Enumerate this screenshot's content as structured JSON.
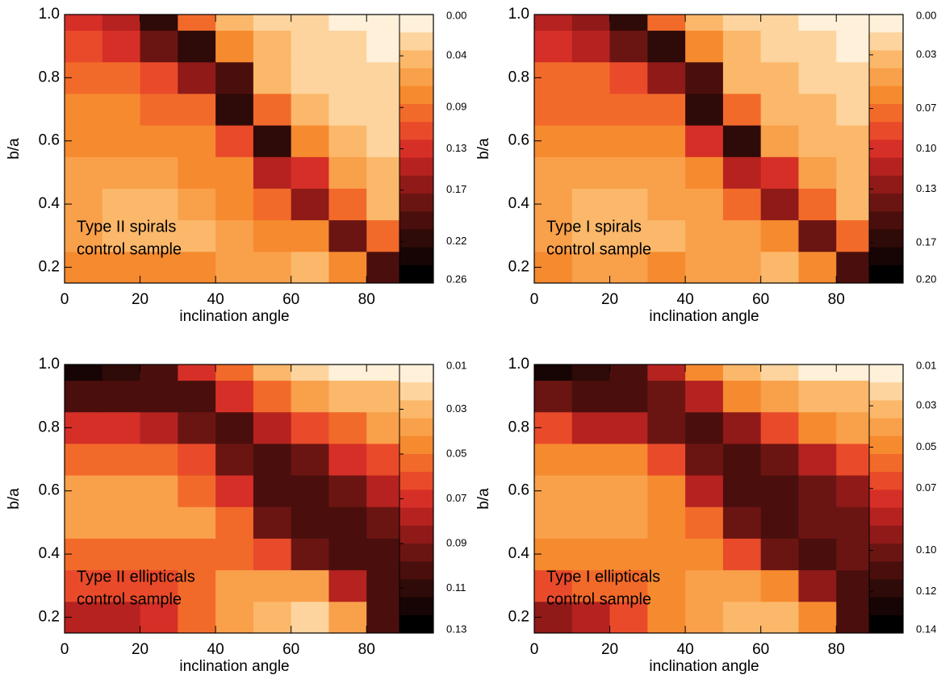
{
  "chart_data": [
    {
      "type": "contour",
      "x": [
        5,
        15,
        25,
        35,
        45,
        55,
        65,
        75,
        85
      ],
      "y": [
        0.2,
        0.3,
        0.4,
        0.5,
        0.6,
        0.7,
        0.8,
        0.9,
        1.0
      ],
      "z": [
        [
          0.08,
          0.07,
          0.07,
          0.08,
          0.06,
          0.06,
          0.05,
          0.08,
          0.2
        ],
        [
          0.06,
          0.05,
          0.05,
          0.05,
          0.06,
          0.07,
          0.08,
          0.18,
          0.1
        ],
        [
          0.06,
          0.05,
          0.05,
          0.06,
          0.07,
          0.09,
          0.16,
          0.1,
          0.05
        ],
        [
          0.06,
          0.06,
          0.06,
          0.07,
          0.08,
          0.14,
          0.13,
          0.06,
          0.04
        ],
        [
          0.07,
          0.07,
          0.07,
          0.08,
          0.12,
          0.22,
          0.07,
          0.04,
          0.03
        ],
        [
          0.08,
          0.08,
          0.09,
          0.1,
          0.22,
          0.09,
          0.04,
          0.03,
          0.03
        ],
        [
          0.09,
          0.1,
          0.11,
          0.16,
          0.2,
          0.05,
          0.03,
          0.03,
          0.02
        ],
        [
          0.12,
          0.13,
          0.18,
          0.22,
          0.07,
          0.04,
          0.03,
          0.02,
          0.01
        ],
        [
          0.13,
          0.15,
          0.22,
          0.1,
          0.05,
          0.03,
          0.02,
          0.01,
          0.01
        ]
      ],
      "xlim": [
        0,
        90
      ],
      "ylim": [
        0.15,
        1.0
      ],
      "xticks": [
        0,
        20,
        40,
        60,
        80
      ],
      "yticks": [
        0.2,
        0.4,
        0.6,
        0.8,
        {
          "value": 1.0,
          "label": "1.0"
        }
      ],
      "xlabel": "inclination angle",
      "ylabel": "b/a",
      "annotation": [
        "Type II spirals",
        "control sample"
      ],
      "colorbar": {
        "colors": [
          "#fef0d9",
          "#fdd49e",
          "#fbb86a",
          "#f9a04a",
          "#f68a2f",
          "#f26a2a",
          "#e94a2a",
          "#d62f27",
          "#b5221f",
          "#8f1a18",
          "#6b1512",
          "#4a0f0d",
          "#2e0a08",
          "#160504",
          "#000000"
        ],
        "ticks": [
          {
            "value": 0,
            "label": "0.00"
          },
          {
            "value": 0.04,
            "label": "0.04"
          },
          {
            "value": 0.09,
            "label": "0.09"
          },
          {
            "value": 0.13,
            "label": "0.13"
          },
          {
            "value": 0.17,
            "label": "0.17"
          },
          {
            "value": 0.22,
            "label": "0.22"
          },
          {
            "value": 0.26,
            "label": "0.26"
          }
        ]
      }
    },
    {
      "type": "contour",
      "x": [
        5,
        15,
        25,
        35,
        45,
        55,
        65,
        75,
        85
      ],
      "y": [
        0.2,
        0.3,
        0.4,
        0.5,
        0.6,
        0.7,
        0.8,
        0.9,
        1.0
      ],
      "z": [
        [
          0.06,
          0.05,
          0.05,
          0.06,
          0.05,
          0.05,
          0.04,
          0.06,
          0.15
        ],
        [
          0.05,
          0.04,
          0.04,
          0.04,
          0.05,
          0.05,
          0.06,
          0.14,
          0.08
        ],
        [
          0.05,
          0.04,
          0.04,
          0.05,
          0.05,
          0.07,
          0.13,
          0.08,
          0.04
        ],
        [
          0.05,
          0.05,
          0.05,
          0.05,
          0.06,
          0.11,
          0.1,
          0.05,
          0.03
        ],
        [
          0.06,
          0.06,
          0.06,
          0.06,
          0.1,
          0.17,
          0.05,
          0.03,
          0.03
        ],
        [
          0.07,
          0.07,
          0.07,
          0.08,
          0.17,
          0.07,
          0.03,
          0.03,
          0.02
        ],
        [
          0.08,
          0.08,
          0.09,
          0.13,
          0.15,
          0.04,
          0.03,
          0.02,
          0.02
        ],
        [
          0.1,
          0.11,
          0.14,
          0.17,
          0.06,
          0.03,
          0.02,
          0.02,
          0.01
        ],
        [
          0.11,
          0.12,
          0.17,
          0.08,
          0.04,
          0.02,
          0.02,
          0.01,
          0.01
        ]
      ],
      "xlim": [
        0,
        90
      ],
      "ylim": [
        0.15,
        1.0
      ],
      "xticks": [
        0,
        20,
        40,
        60,
        80
      ],
      "yticks": [
        0.2,
        0.4,
        0.6,
        0.8,
        {
          "value": 1.0,
          "label": "1.0"
        }
      ],
      "xlabel": "inclination angle",
      "ylabel": "b/a",
      "annotation": [
        "Type I spirals",
        "control sample"
      ],
      "colorbar": {
        "colors": [
          "#fef0d9",
          "#fdd49e",
          "#fbb86a",
          "#f9a04a",
          "#f68a2f",
          "#f26a2a",
          "#e94a2a",
          "#d62f27",
          "#b5221f",
          "#8f1a18",
          "#6b1512",
          "#4a0f0d",
          "#2e0a08",
          "#160504",
          "#000000"
        ],
        "ticks": [
          {
            "value": 0,
            "label": "0.00"
          },
          {
            "value": 0.03,
            "label": "0.03"
          },
          {
            "value": 0.07,
            "label": "0.07"
          },
          {
            "value": 0.1,
            "label": "0.10"
          },
          {
            "value": 0.13,
            "label": "0.13"
          },
          {
            "value": 0.17,
            "label": "0.17"
          },
          {
            "value": 0.2,
            "label": "0.20"
          }
        ]
      }
    },
    {
      "type": "contour",
      "x": [
        5,
        15,
        25,
        35,
        45,
        55,
        65,
        75,
        85
      ],
      "y": [
        0.2,
        0.3,
        0.4,
        0.5,
        0.6,
        0.7,
        0.8,
        0.9,
        1.0
      ],
      "z": [
        [
          0.08,
          0.08,
          0.07,
          0.05,
          0.04,
          0.03,
          0.02,
          0.04,
          0.1
        ],
        [
          0.06,
          0.06,
          0.06,
          0.05,
          0.04,
          0.04,
          0.04,
          0.08,
          0.1
        ],
        [
          0.05,
          0.05,
          0.05,
          0.05,
          0.05,
          0.06,
          0.09,
          0.1,
          0.1
        ],
        [
          0.04,
          0.04,
          0.04,
          0.04,
          0.05,
          0.09,
          0.1,
          0.1,
          0.09
        ],
        [
          0.04,
          0.04,
          0.04,
          0.05,
          0.07,
          0.1,
          0.1,
          0.09,
          0.08
        ],
        [
          0.05,
          0.05,
          0.05,
          0.06,
          0.09,
          0.1,
          0.09,
          0.07,
          0.06
        ],
        [
          0.07,
          0.07,
          0.08,
          0.09,
          0.1,
          0.08,
          0.06,
          0.05,
          0.04
        ],
        [
          0.1,
          0.1,
          0.1,
          0.1,
          0.07,
          0.05,
          0.04,
          0.03,
          0.03
        ],
        [
          0.12,
          0.11,
          0.1,
          0.07,
          0.05,
          0.03,
          0.02,
          0.01,
          0.01
        ]
      ],
      "xlim": [
        0,
        90
      ],
      "ylim": [
        0.15,
        1.0
      ],
      "xticks": [
        0,
        20,
        40,
        60,
        80
      ],
      "yticks": [
        0.2,
        0.4,
        0.6,
        0.8,
        {
          "value": 1.0,
          "label": "1.0"
        }
      ],
      "xlabel": "inclination angle",
      "ylabel": "b/a",
      "annotation": [
        "Type II ellipticals",
        "control sample"
      ],
      "colorbar": {
        "colors": [
          "#fef0d9",
          "#fdd49e",
          "#fbb86a",
          "#f9a04a",
          "#f68a2f",
          "#f26a2a",
          "#e94a2a",
          "#d62f27",
          "#b5221f",
          "#8f1a18",
          "#6b1512",
          "#4a0f0d",
          "#2e0a08",
          "#160504",
          "#000000"
        ],
        "ticks": [
          {
            "value": 0.01,
            "label": "0.01"
          },
          {
            "value": 0.03,
            "label": "0.03"
          },
          {
            "value": 0.05,
            "label": "0.05"
          },
          {
            "value": 0.07,
            "label": "0.07"
          },
          {
            "value": 0.09,
            "label": "0.09"
          },
          {
            "value": 0.11,
            "label": "0.11"
          },
          {
            "value": 0.13,
            "label": "0.13"
          }
        ]
      }
    },
    {
      "type": "contour",
      "x": [
        5,
        15,
        25,
        35,
        45,
        55,
        65,
        75,
        85
      ],
      "y": [
        0.2,
        0.3,
        0.4,
        0.5,
        0.6,
        0.7,
        0.8,
        0.9,
        1.0
      ],
      "z": [
        [
          0.09,
          0.08,
          0.07,
          0.05,
          0.04,
          0.03,
          0.03,
          0.05,
          0.11
        ],
        [
          0.07,
          0.06,
          0.06,
          0.05,
          0.04,
          0.04,
          0.05,
          0.09,
          0.11
        ],
        [
          0.05,
          0.05,
          0.05,
          0.05,
          0.05,
          0.07,
          0.1,
          0.11,
          0.1
        ],
        [
          0.04,
          0.04,
          0.04,
          0.05,
          0.06,
          0.1,
          0.11,
          0.1,
          0.1
        ],
        [
          0.04,
          0.04,
          0.04,
          0.05,
          0.08,
          0.11,
          0.11,
          0.1,
          0.09
        ],
        [
          0.05,
          0.05,
          0.05,
          0.07,
          0.1,
          0.11,
          0.1,
          0.08,
          0.07
        ],
        [
          0.07,
          0.08,
          0.08,
          0.1,
          0.11,
          0.09,
          0.07,
          0.05,
          0.04
        ],
        [
          0.1,
          0.11,
          0.11,
          0.1,
          0.08,
          0.05,
          0.04,
          0.03,
          0.03
        ],
        [
          0.13,
          0.12,
          0.11,
          0.08,
          0.05,
          0.03,
          0.02,
          0.01,
          0.01
        ]
      ],
      "xlim": [
        0,
        90
      ],
      "ylim": [
        0.15,
        1.0
      ],
      "xticks": [
        0,
        20,
        40,
        60,
        80
      ],
      "yticks": [
        0.2,
        0.4,
        0.6,
        0.8,
        {
          "value": 1.0,
          "label": "1.0"
        }
      ],
      "xlabel": "inclination angle",
      "ylabel": "b/a",
      "annotation": [
        "Type I ellipticals",
        "control sample"
      ],
      "colorbar": {
        "colors": [
          "#fef0d9",
          "#fdd49e",
          "#fbb86a",
          "#f9a04a",
          "#f68a2f",
          "#f26a2a",
          "#e94a2a",
          "#d62f27",
          "#b5221f",
          "#8f1a18",
          "#6b1512",
          "#4a0f0d",
          "#2e0a08",
          "#160504",
          "#000000"
        ],
        "ticks": [
          {
            "value": 0.01,
            "label": "0.01"
          },
          {
            "value": 0.03,
            "label": "0.03"
          },
          {
            "value": 0.05,
            "label": "0.05"
          },
          {
            "value": 0.07,
            "label": "0.07"
          },
          {
            "value": 0.1,
            "label": "0.10"
          },
          {
            "value": 0.12,
            "label": "0.12"
          },
          {
            "value": 0.14,
            "label": "0.14"
          }
        ]
      }
    }
  ]
}
